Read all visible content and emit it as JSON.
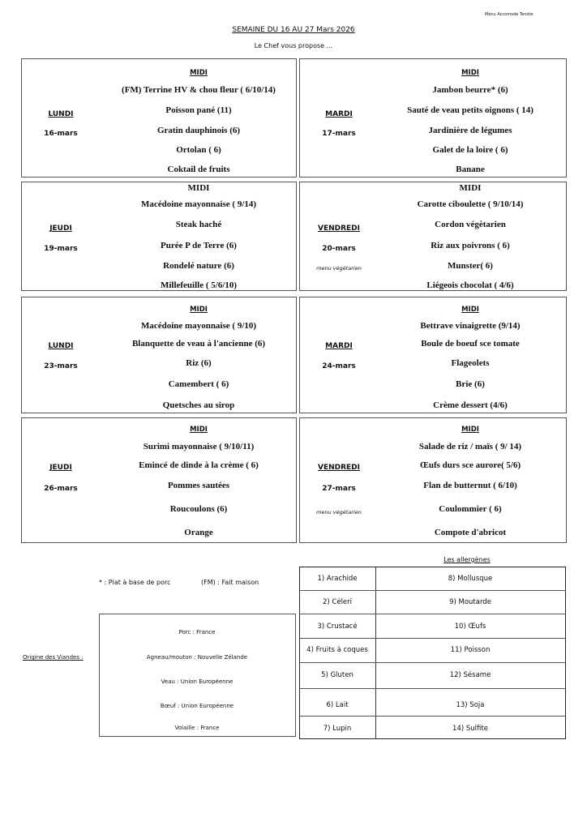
{
  "header": {
    "corner_note": "Menu Accomode Tendre",
    "title": "SEMAINE DU 16 AU 27 Mars  2026",
    "subtitle": "Le Chef vous propose ..."
  },
  "days": [
    {
      "day": "LUNDI",
      "date": "16-mars",
      "note": "",
      "meal": "MIDI",
      "dishes": [
        "(FM) Terrine HV & chou fleur ( 6/10/14)",
        "Poisson pané   (11)",
        "Gratin dauphinois (6)",
        "Ortolan ( 6)",
        "Coktail de fruits"
      ]
    },
    {
      "day": "MARDI",
      "date": "17-mars",
      "note": "",
      "meal": "MIDI",
      "dishes": [
        "Jambon beurre* (6)",
        "Sauté de veau petits oignons  ( 14)",
        "Jardinière de légumes",
        "Galet de la loire  ( 6)",
        "Banane"
      ]
    },
    {
      "day": "JEUDI",
      "date": "19-mars",
      "note": "",
      "meal": "MIDI",
      "dishes": [
        "Macédoine mayonnaise ( 9/14)",
        "Steak haché",
        "Purée P de Terre (6)",
        "Rondelé nature (6)",
        "Millefeuille ( 5/6/10)"
      ]
    },
    {
      "day": "VENDREDI",
      "date": "20-mars",
      "note": "menu végétarien",
      "meal": "MIDI",
      "dishes": [
        "Carotte ciboulette ( 9/10/14)",
        "Cordon végètarien",
        "Riz aux poivrons ( 6)",
        "Munster( 6)",
        "Liégeois chocolat  ( 4/6)"
      ]
    },
    {
      "day": "LUNDI",
      "date": "23-mars",
      "note": "",
      "meal": "MIDI",
      "dishes": [
        "Macédoine mayonnaise ( 9/10)",
        "Blanquette de veau à l'ancienne (6)",
        "Riz  (6)",
        "Camembert ( 6)",
        "Quetsches au sirop"
      ]
    },
    {
      "day": "MARDI",
      "date": "24-mars",
      "note": "",
      "meal": "MIDI",
      "dishes": [
        "Bettrave vinaigrette (9/14)",
        "Boule de boeuf sce tomate",
        "Flageolets",
        "Brie  (6)",
        "Crème dessert (4/6)"
      ]
    },
    {
      "day": "JEUDI",
      "date": "26-mars",
      "note": "",
      "meal": "MIDI",
      "dishes": [
        "Surimi mayonnaise ( 9/10/11)",
        "Emincé de  dinde à la crème    ( 6)",
        "Pommes sautées",
        "Roucoulons  (6)",
        "Orange"
      ]
    },
    {
      "day": "VENDREDI",
      "date": "27-mars",
      "note": "menu végétarien",
      "meal": "MIDI",
      "dishes": [
        "Salade de riz / maïs  ( 9/ 14)",
        "Œufs durs sce aurore( 5/6)",
        "Flan de butternut ( 6/10)",
        "Coulommier ( 6)",
        "Compote d'abricot"
      ]
    }
  ],
  "legend": {
    "pork": "* : Plat à base de porc",
    "homemade": "(FM) : Fait maison"
  },
  "origins": {
    "label": "Origine des Viandes :",
    "items": [
      "Porc : France",
      "Agneau/mouton : Nouvelle Zélande",
      "Veau : Union Européenne",
      "Bœuf : Union Européenne",
      "Volaille : France"
    ]
  },
  "allergens": {
    "title": "Les allergènes",
    "left": [
      "1)  Arachide",
      "2) Céleri",
      "3) Crustacé",
      "4) Fruits à coques",
      "5) Gluten",
      "6) Lait",
      "7) Lupin"
    ],
    "right": [
      "8) Mollusque",
      "9) Moutarde",
      "10) Œufs",
      "11) Poisson",
      "12) Sésame",
      "13) Soja",
      "14) Sulfite"
    ]
  }
}
